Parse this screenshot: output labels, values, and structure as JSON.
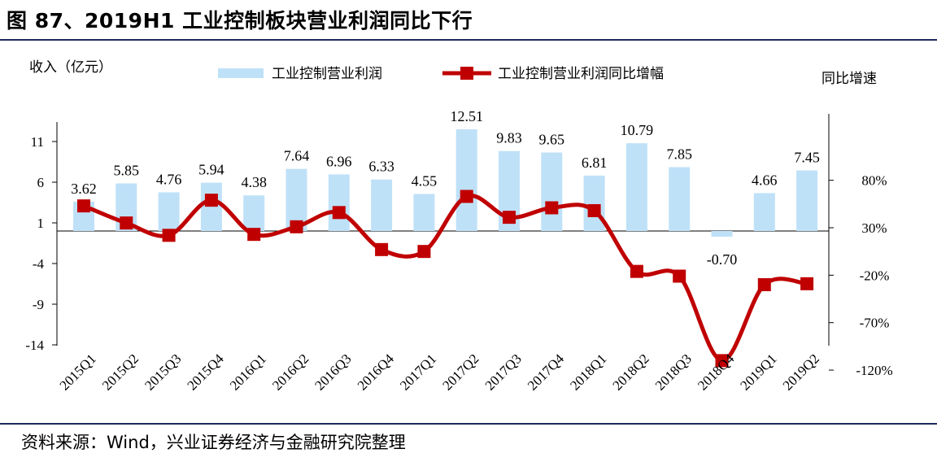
{
  "header": {
    "title": "图 87、2019H1 工业控制板块营业利润同比下行"
  },
  "footer": {
    "source": "资料来源：Wind，兴业证券经济与金融研究院整理"
  },
  "chart_data": {
    "type": "bar+line",
    "categories": [
      "2015Q1",
      "2015Q2",
      "2015Q3",
      "2015Q4",
      "2016Q1",
      "2016Q2",
      "2016Q3",
      "2016Q4",
      "2017Q1",
      "2017Q2",
      "2017Q3",
      "2017Q4",
      "2018Q1",
      "2018Q2",
      "2018Q3",
      "2018Q4",
      "2019Q1",
      "2019Q2"
    ],
    "series": [
      {
        "name": "工业控制营业利润",
        "type": "bar",
        "axis": "left",
        "values": [
          3.62,
          5.85,
          4.76,
          5.94,
          4.38,
          7.64,
          6.96,
          6.33,
          4.55,
          12.51,
          9.83,
          9.65,
          6.81,
          10.79,
          7.85,
          -0.7,
          4.66,
          7.45
        ],
        "labels": [
          "3.62",
          "5.85",
          "4.76",
          "5.94",
          "4.38",
          "7.64",
          "6.96",
          "6.33",
          "4.55",
          "12.51",
          "9.83",
          "9.65",
          "6.81",
          "10.79",
          "7.85",
          "-0.70",
          "4.66",
          "7.45"
        ],
        "color": "#bfe1f8"
      },
      {
        "name": "工业控制营业利润同比增幅",
        "type": "line",
        "axis": "right",
        "values": [
          53,
          35,
          22,
          59,
          23,
          31,
          46,
          7,
          5,
          63,
          41,
          51,
          48,
          -16,
          -21,
          -110,
          -30,
          -29
        ],
        "color": "#c00000"
      }
    ],
    "y_left": {
      "label": "收入（亿元）",
      "ticks": [
        11,
        6,
        1,
        -4,
        -9,
        -14
      ],
      "range": [
        -14,
        16
      ]
    },
    "y_right": {
      "label": "同比增速",
      "ticks": [
        "80%",
        "30%",
        "-20%",
        "-70%",
        "-120%"
      ],
      "tick_values": [
        80,
        30,
        -20,
        -70,
        -120
      ]
    }
  }
}
